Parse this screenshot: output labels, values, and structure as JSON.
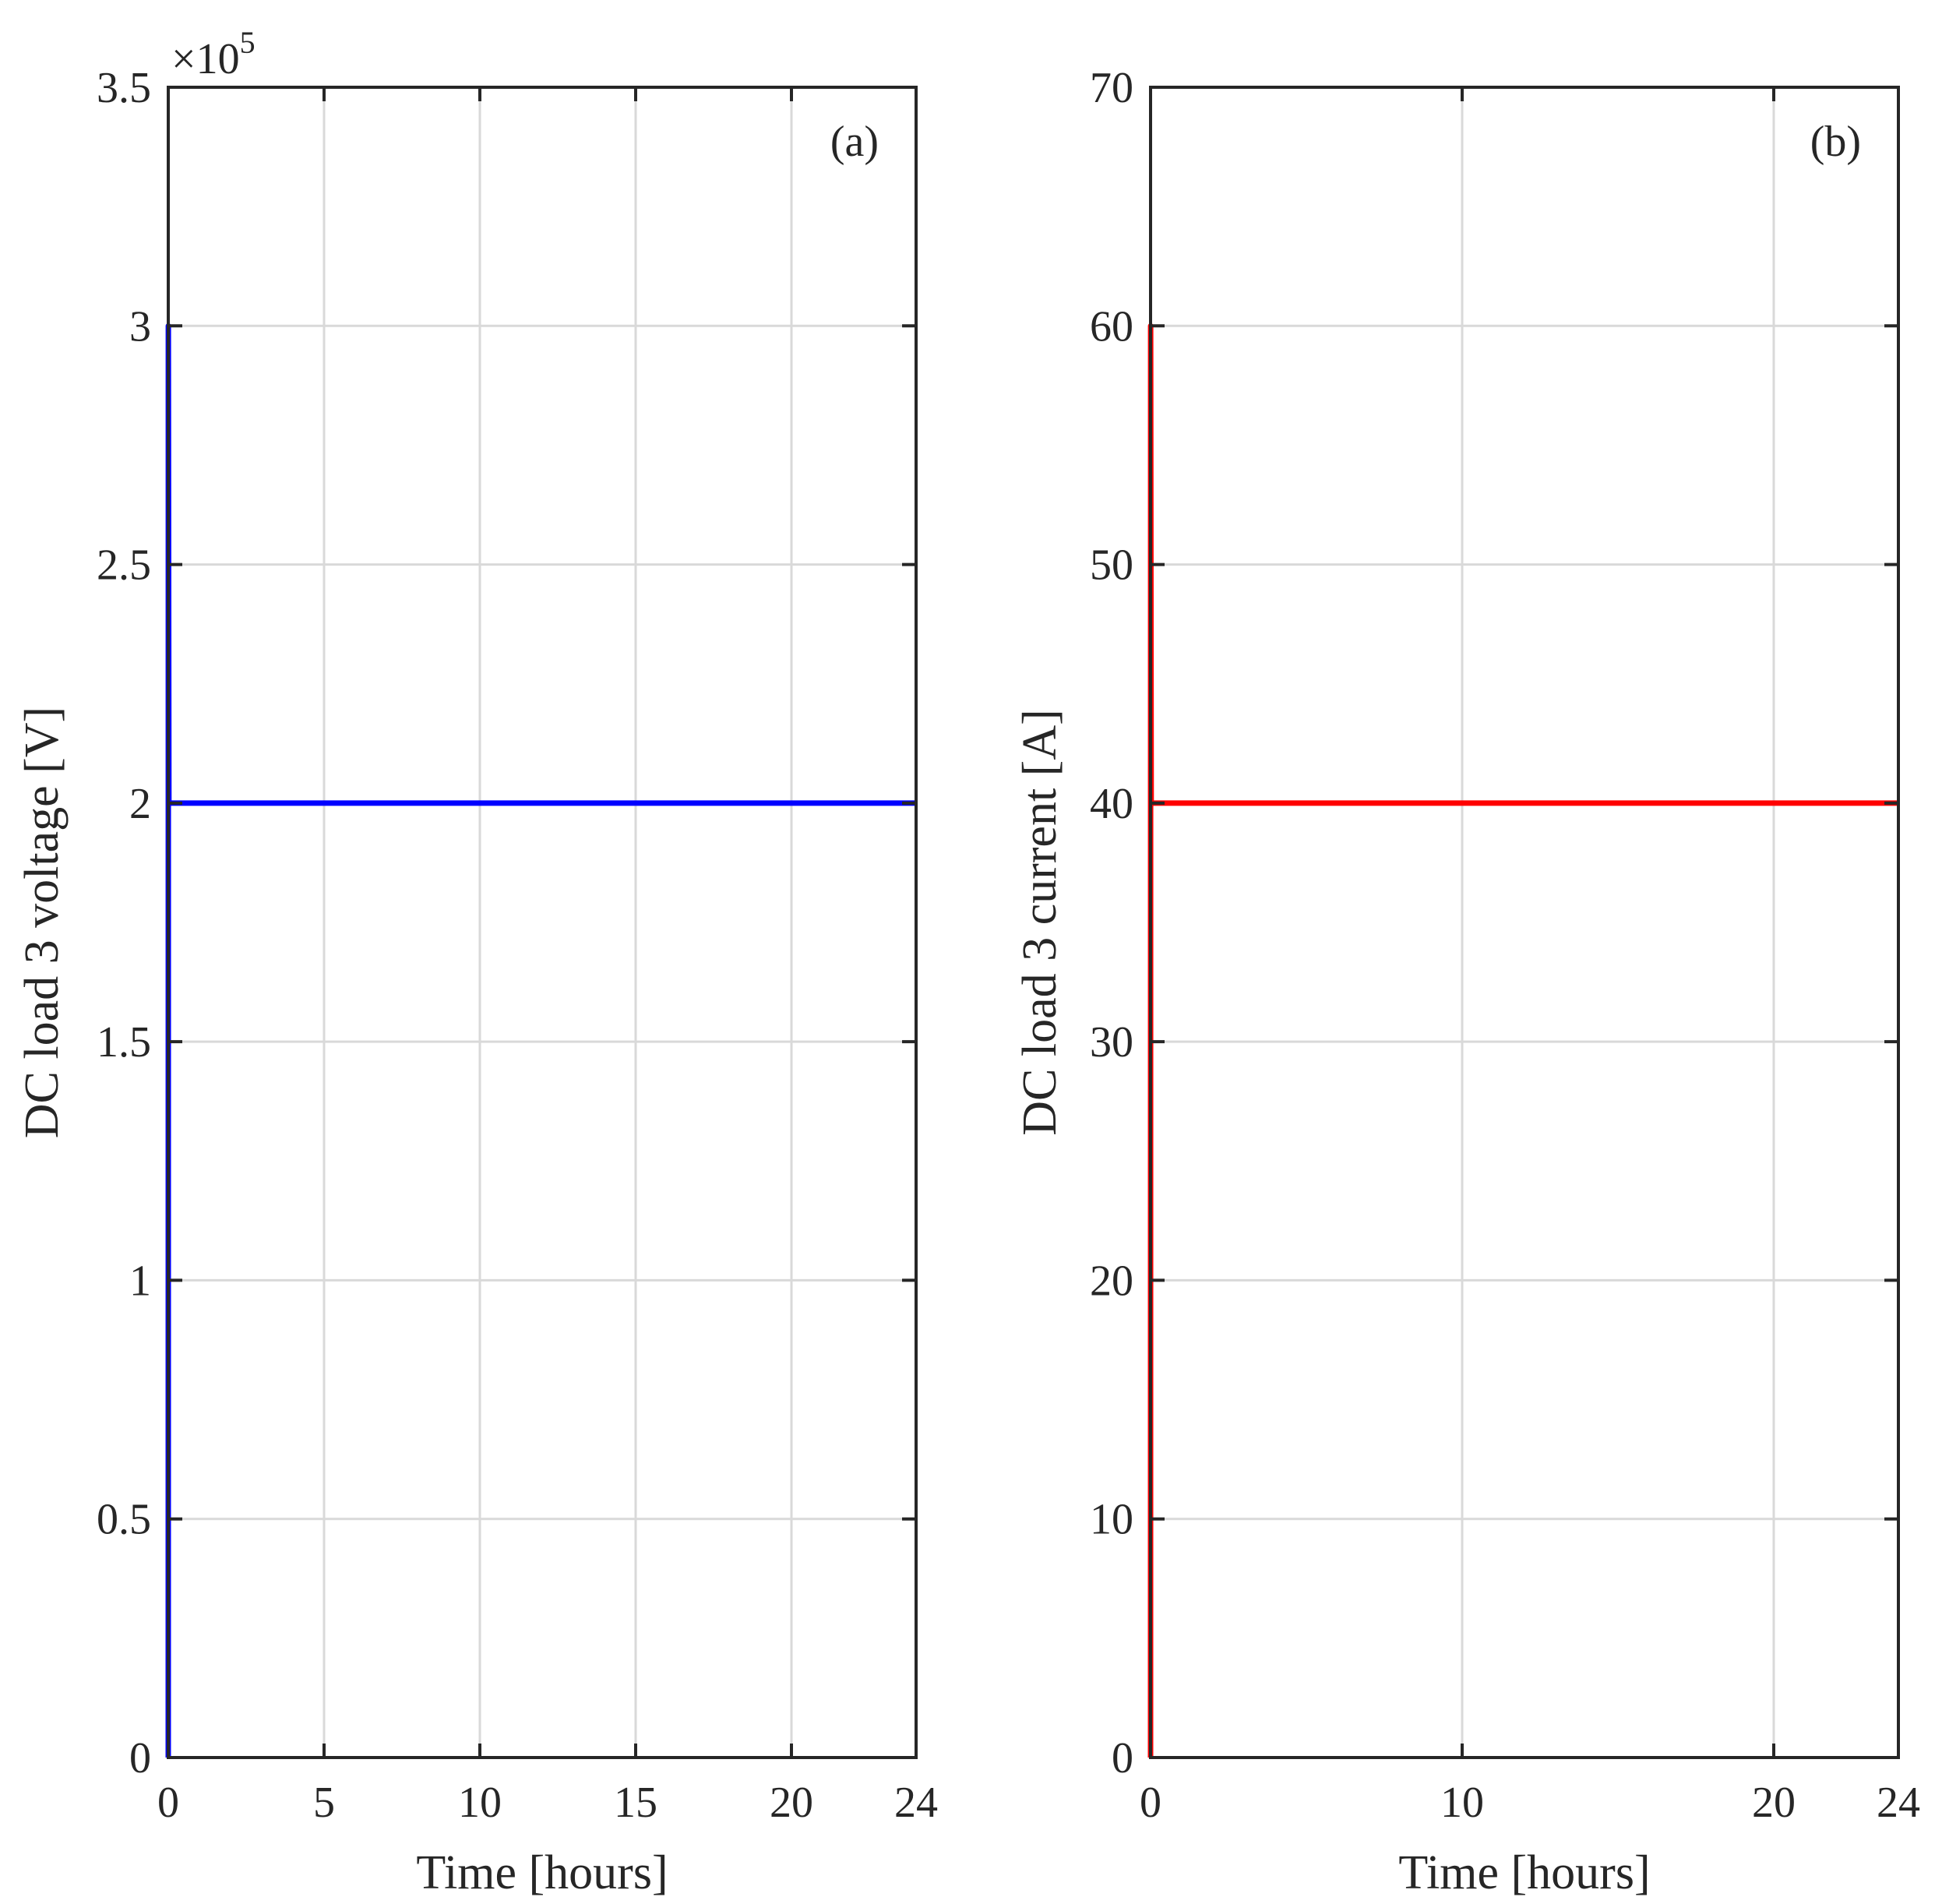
{
  "chart_data": [
    {
      "type": "line",
      "panel_label": "(a)",
      "xlabel": "Time [hours]",
      "ylabel": "DC load 3 voltage [V]",
      "y_exponent_label": "×10",
      "y_exponent_power": "5",
      "xlim": [
        0,
        24
      ],
      "ylim": [
        0,
        3.5
      ],
      "xticks": [
        0,
        5,
        10,
        15,
        20,
        24
      ],
      "xtick_labels": [
        "0",
        "5",
        "10",
        "15",
        "20",
        "24"
      ],
      "yticks": [
        0,
        0.5,
        1,
        1.5,
        2,
        2.5,
        3,
        3.5
      ],
      "ytick_labels": [
        "0",
        "0.5",
        "1",
        "1.5",
        "2",
        "2.5",
        "3",
        "3.5"
      ],
      "grid": true,
      "series": [
        {
          "color": "#0000ff",
          "x": [
            0,
            0.003,
            0.02,
            0.06,
            24
          ],
          "y": [
            0,
            3.0,
            2.0,
            2.0,
            2.0
          ]
        }
      ]
    },
    {
      "type": "line",
      "panel_label": "(b)",
      "xlabel": "Time [hours]",
      "ylabel": "DC load 3 current [A]",
      "xlim": [
        0,
        24
      ],
      "ylim": [
        0,
        70
      ],
      "xticks": [
        0,
        10,
        20,
        24
      ],
      "xtick_labels": [
        "0",
        "10",
        "20",
        "24"
      ],
      "yticks": [
        0,
        10,
        20,
        30,
        40,
        50,
        60,
        70
      ],
      "ytick_labels": [
        "0",
        "10",
        "20",
        "30",
        "40",
        "50",
        "60",
        "70"
      ],
      "grid": true,
      "series": [
        {
          "color": "#ff0000",
          "x": [
            0,
            0.003,
            0.02,
            0.06,
            24
          ],
          "y": [
            0,
            60,
            40,
            40,
            40
          ]
        }
      ]
    }
  ]
}
